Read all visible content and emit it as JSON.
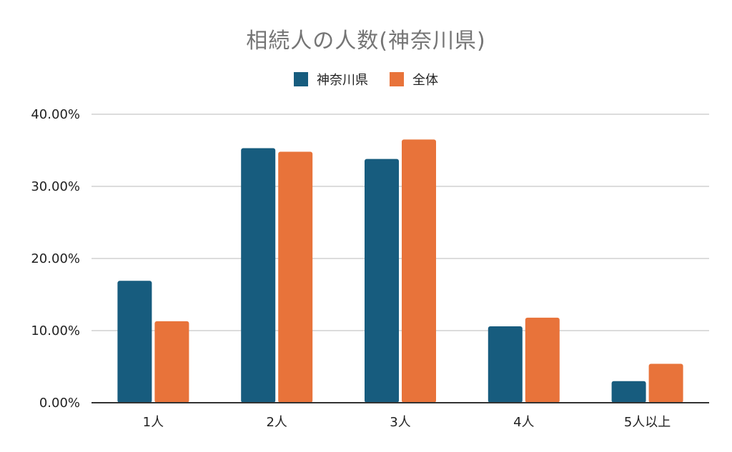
{
  "chart_data": {
    "type": "bar",
    "title": "相続人の人数(神奈川県)",
    "categories": [
      "1人",
      "2人",
      "3人",
      "4人",
      "5人以上"
    ],
    "series": [
      {
        "name": "神奈川県",
        "color": "#175c7e",
        "values": [
          16.9,
          35.3,
          33.8,
          10.6,
          3.0
        ]
      },
      {
        "name": "全体",
        "color": "#e8733a",
        "values": [
          11.3,
          34.8,
          36.5,
          11.8,
          5.4
        ]
      }
    ],
    "ylim": [
      0,
      40
    ],
    "yticks": [
      {
        "value": 0,
        "label": "0.00%"
      },
      {
        "value": 10,
        "label": "10.00%"
      },
      {
        "value": 20,
        "label": "20.00%"
      },
      {
        "value": 30,
        "label": "30.00%"
      },
      {
        "value": 40,
        "label": "40.00%"
      }
    ],
    "grid": true,
    "legend_position": "top-center"
  }
}
